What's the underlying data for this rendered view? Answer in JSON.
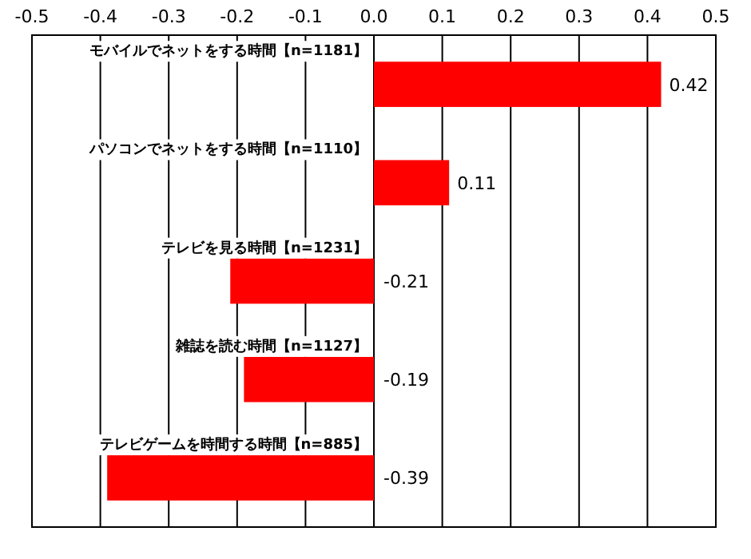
{
  "chart_data": {
    "type": "bar",
    "orientation": "horizontal",
    "categories": [
      "モバイルでネットをする時間【n=1181】",
      "パソコンでネットをする時間【n=1110】",
      "テレビを見る時間【n=1231】",
      "雑誌を読む時間【n=1127】",
      "テレビゲームを時間する時間【n=885】"
    ],
    "values": [
      0.42,
      0.11,
      -0.21,
      -0.19,
      -0.39
    ],
    "color": "#ff0000",
    "xlim": [
      -0.5,
      0.5
    ],
    "xticks": [
      -0.5,
      -0.4,
      -0.3,
      -0.2,
      -0.1,
      {
        "value": 0,
        "label": "0.0"
      },
      0.1,
      0.2,
      0.3,
      0.4,
      0.5
    ],
    "grid": "x",
    "data_labels": true
  }
}
